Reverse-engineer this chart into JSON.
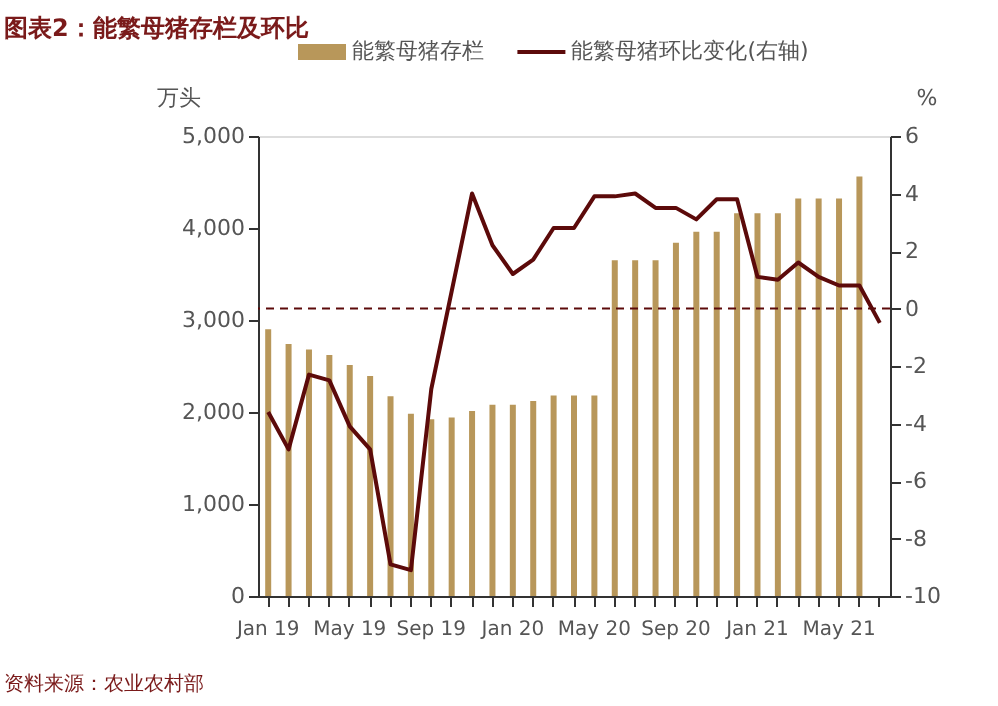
{
  "chart_data": {
    "type": "bar",
    "title": "图表2：能繁母猪存栏及环比",
    "ylabel": "万头",
    "y2label": "%",
    "categories": [
      "Jan 19",
      null,
      null,
      null,
      "May 19",
      null,
      null,
      null,
      "Sep 19",
      null,
      null,
      null,
      "Jan 20",
      null,
      null,
      null,
      "May 20",
      null,
      null,
      null,
      "Sep 20",
      null,
      null,
      null,
      "Jan 21",
      null,
      null,
      null,
      "May 21",
      null,
      null
    ],
    "series": [
      {
        "name": "能繁母猪存栏",
        "color": "#b8975a",
        "values": [
          2900,
          2740,
          2680,
          2620,
          2510,
          2390,
          2170,
          1980,
          1920,
          1940,
          2010,
          2080,
          2080,
          2120,
          2180,
          2180,
          2180,
          3650,
          3650,
          3650,
          3840,
          3960,
          3960,
          4160,
          4160,
          4160,
          4320,
          4320,
          4320,
          4560,
          null
        ]
      },
      {
        "name": "能繁母猪环比变化(右轴)",
        "type": "line",
        "axis": "y2",
        "color": "#5c0a0a",
        "values": [
          -3.6,
          -4.9,
          -2.3,
          -2.5,
          -4.1,
          -4.9,
          -8.9,
          -9.1,
          -2.8,
          0.6,
          4.0,
          2.2,
          1.2,
          1.7,
          2.8,
          2.8,
          3.9,
          3.9,
          4.0,
          3.5,
          3.5,
          3.1,
          3.8,
          3.8,
          1.1,
          1.0,
          1.6,
          1.1,
          0.8,
          0.8,
          -0.5
        ]
      }
    ],
    "ylim": [
      0,
      5000
    ],
    "yticks": [
      0,
      {
        "value": 1000,
        "label": "1,000"
      },
      {
        "value": 2000,
        "label": "2,000"
      },
      {
        "value": 3000,
        "label": "3,000"
      },
      {
        "value": 4000,
        "label": "4,000"
      },
      {
        "value": 5000,
        "label": "5,000"
      }
    ],
    "y2lim": [
      -10,
      6
    ],
    "y2ticks": [
      -10,
      -8,
      -6,
      -4,
      -2,
      0,
      2,
      4,
      6
    ],
    "ref_lines": [
      {
        "axis": "y2",
        "value": 0,
        "color": "#5c0a0a",
        "line_style": "dashed"
      }
    ],
    "legend": "top",
    "grid": false,
    "annotations": [
      "资料来源：农业农村部"
    ]
  }
}
